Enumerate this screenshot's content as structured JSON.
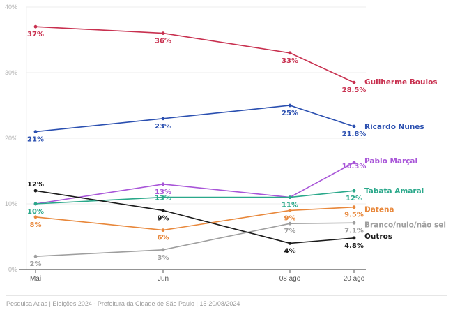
{
  "chart_data": {
    "type": "line",
    "title": "",
    "xlabel": "",
    "ylabel": "",
    "categories": [
      "Mai",
      "Jun",
      "08 ago",
      "20 ago"
    ],
    "ylim": [
      0,
      40
    ],
    "yticks": [
      "0%",
      "10%",
      "20%",
      "30%",
      "40%"
    ],
    "grid": true,
    "legend": "end-of-line labels (right)",
    "series": [
      {
        "name": "Guilherme Boulos",
        "color": "#c8304f",
        "values": [
          37,
          36,
          33,
          28.5
        ],
        "labels": [
          "37%",
          "36%",
          "33%",
          "28.5%"
        ]
      },
      {
        "name": "Ricardo Nunes",
        "color": "#2a4fb0",
        "values": [
          21,
          23,
          25,
          21.8
        ],
        "labels": [
          "21%",
          "23%",
          "25%",
          "21.8%"
        ]
      },
      {
        "name": "Pablo Marçal",
        "color": "#a855d8",
        "values": [
          10,
          13,
          11,
          16.3
        ],
        "labels": [
          "",
          "13%",
          "",
          "16.3%"
        ]
      },
      {
        "name": "Tabata Amaral",
        "color": "#2aa88a",
        "values": [
          10,
          11,
          11,
          12
        ],
        "labels": [
          "10%",
          "11%",
          "11%",
          "12%"
        ]
      },
      {
        "name": "Datena",
        "color": "#e8873a",
        "values": [
          8,
          6,
          9,
          9.5
        ],
        "labels": [
          "8%",
          "6%",
          "9%",
          "9.5%"
        ]
      },
      {
        "name": "Branco/nulo/não sei",
        "color": "#9e9e9e",
        "values": [
          2,
          3,
          7,
          7.1
        ],
        "labels": [
          "2%",
          "3%",
          "7%",
          "7.1%"
        ]
      },
      {
        "name": "Outros",
        "color": "#1a1a1a",
        "values": [
          12,
          9,
          4,
          4.8
        ],
        "labels": [
          "12%",
          "9%",
          "4%",
          "4.8%"
        ]
      }
    ]
  },
  "footer": {
    "source": "Pesquisa Atlas | Eleições 2024 - Prefeitura da Cidade de São Paulo | 15-20/08/2024"
  }
}
